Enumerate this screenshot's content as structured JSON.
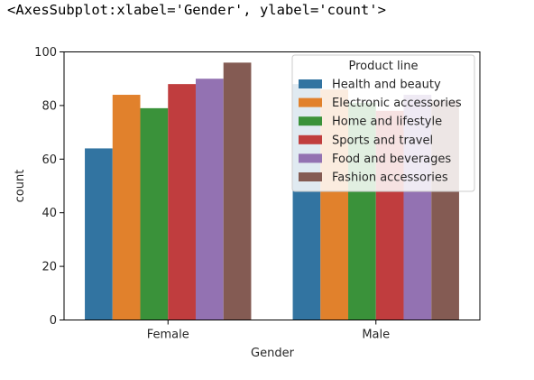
{
  "output_repr": "<AxesSubplot:xlabel='Gender', ylabel='count'>",
  "chart_data": {
    "type": "bar",
    "categories": [
      "Female",
      "Male"
    ],
    "xlabel": "Gender",
    "ylabel": "count",
    "ylim": [
      0,
      100
    ],
    "yticks": [
      0,
      20,
      40,
      60,
      80,
      100
    ],
    "grid": false,
    "legend": {
      "title": "Product line",
      "placement": "top-right"
    },
    "series": [
      {
        "name": "Health and beauty",
        "color": "#3274a1",
        "values": [
          64,
          88
        ]
      },
      {
        "name": "Electronic accessories",
        "color": "#e1812c",
        "values": [
          84,
          86
        ]
      },
      {
        "name": "Home and lifestyle",
        "color": "#3a923a",
        "values": [
          79,
          81
        ]
      },
      {
        "name": "Sports and travel",
        "color": "#c03d3e",
        "values": [
          88,
          78
        ]
      },
      {
        "name": "Food and beverages",
        "color": "#9372b2",
        "values": [
          90,
          84
        ]
      },
      {
        "name": "Fashion accessories",
        "color": "#845b53",
        "values": [
          96,
          82
        ]
      }
    ]
  }
}
